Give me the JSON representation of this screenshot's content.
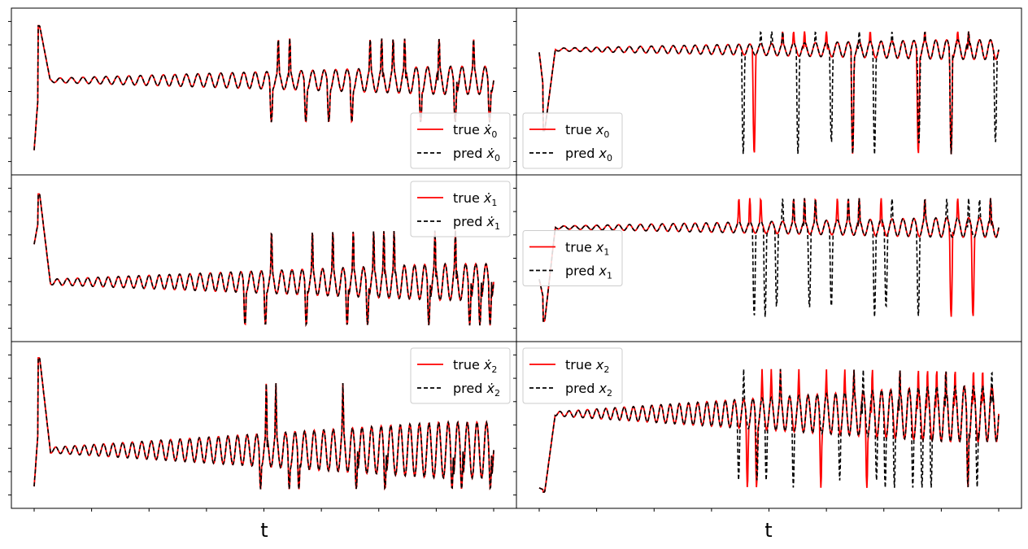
{
  "figure": {
    "xlabel": "t",
    "colors": {
      "true": "#ff0000",
      "pred": "#000000",
      "legend_border": "#cccccc"
    }
  },
  "chart_data": [
    {
      "type": "line",
      "panel": "dx0",
      "column": "left",
      "row": 0,
      "legend_position": "lower right",
      "legend": {
        "true": {
          "prefix": "true ",
          "var": "ẋ",
          "sub": "0"
        },
        "pred": {
          "prefix": "pred ",
          "var": "ẋ",
          "sub": "0"
        }
      },
      "xlim": [
        0,
        1
      ],
      "ylim": [
        -0.05,
        1.05
      ],
      "style": {
        "start": 0.08,
        "spike": 0.97,
        "base": 0.58,
        "amp0": 0.015,
        "amp1": 0.1,
        "cycles": 40,
        "chaos": 0.3,
        "hi": 0.88,
        "lo": 0.28,
        "dev": 0.0,
        "seed": 11
      }
    },
    {
      "type": "line",
      "panel": "x0",
      "column": "right",
      "row": 0,
      "legend_position": "lower left",
      "legend": {
        "true": {
          "prefix": "true ",
          "var": "x",
          "sub": "0"
        },
        "pred": {
          "prefix": "pred ",
          "var": "x",
          "sub": "0"
        }
      },
      "xlim": [
        0,
        1
      ],
      "ylim": [
        -0.05,
        1.05
      ],
      "style": {
        "start": 0.78,
        "spike": 0.22,
        "base": 0.8,
        "amp0": 0.01,
        "amp1": 0.07,
        "cycles": 42,
        "chaos": 0.4,
        "hi": 0.93,
        "lo": 0.05,
        "dev": 0.45,
        "seed": 23
      }
    },
    {
      "type": "line",
      "panel": "dx1",
      "column": "left",
      "row": 1,
      "legend_position": "upper right",
      "legend": {
        "true": {
          "prefix": "true ",
          "var": "ẋ",
          "sub": "1"
        },
        "pred": {
          "prefix": "pred ",
          "var": "ẋ",
          "sub": "1"
        }
      },
      "xlim": [
        0,
        1
      ],
      "ylim": [
        -0.05,
        1.05
      ],
      "style": {
        "start": 0.6,
        "spike": 0.96,
        "base": 0.33,
        "amp0": 0.02,
        "amp1": 0.13,
        "cycles": 45,
        "chaos": 0.38,
        "hi": 0.7,
        "lo": 0.02,
        "dev": 0.0,
        "seed": 37
      }
    },
    {
      "type": "line",
      "panel": "x1",
      "column": "right",
      "row": 1,
      "legend_position": "center left",
      "legend": {
        "true": {
          "prefix": "true ",
          "var": "x",
          "sub": "1"
        },
        "pred": {
          "prefix": "pred ",
          "var": "x",
          "sub": "1"
        }
      },
      "xlim": [
        0,
        1
      ],
      "ylim": [
        -0.05,
        1.05
      ],
      "style": {
        "start": 0.35,
        "spike": 0.05,
        "base": 0.72,
        "amp0": 0.01,
        "amp1": 0.07,
        "cycles": 42,
        "chaos": 0.4,
        "hi": 0.93,
        "lo": 0.08,
        "dev": 0.45,
        "seed": 51
      }
    },
    {
      "type": "line",
      "panel": "dx2",
      "column": "left",
      "row": 2,
      "legend_position": "upper right",
      "legend": {
        "true": {
          "prefix": "true ",
          "var": "ẋ",
          "sub": "2"
        },
        "pred": {
          "prefix": "pred ",
          "var": "ẋ",
          "sub": "2"
        }
      },
      "xlim": [
        0,
        1
      ],
      "ylim": [
        -0.05,
        1.05
      ],
      "style": {
        "start": 0.06,
        "spike": 0.98,
        "base": 0.32,
        "amp0": 0.02,
        "amp1": 0.2,
        "cycles": 48,
        "chaos": 0.28,
        "hi": 0.8,
        "lo": 0.04,
        "dev": 0.0,
        "seed": 67
      }
    },
    {
      "type": "line",
      "panel": "x2",
      "column": "right",
      "row": 2,
      "legend_position": "upper left",
      "legend": {
        "true": {
          "prefix": "true ",
          "var": "x",
          "sub": "2"
        },
        "pred": {
          "prefix": "pred ",
          "var": "x",
          "sub": "2"
        }
      },
      "xlim": [
        0,
        1
      ],
      "ylim": [
        -0.05,
        1.05
      ],
      "style": {
        "start": 0.05,
        "spike": 0.02,
        "base": 0.58,
        "amp0": 0.015,
        "amp1": 0.2,
        "cycles": 50,
        "chaos": 0.36,
        "hi": 0.9,
        "lo": 0.05,
        "dev": 0.35,
        "seed": 83
      }
    }
  ]
}
